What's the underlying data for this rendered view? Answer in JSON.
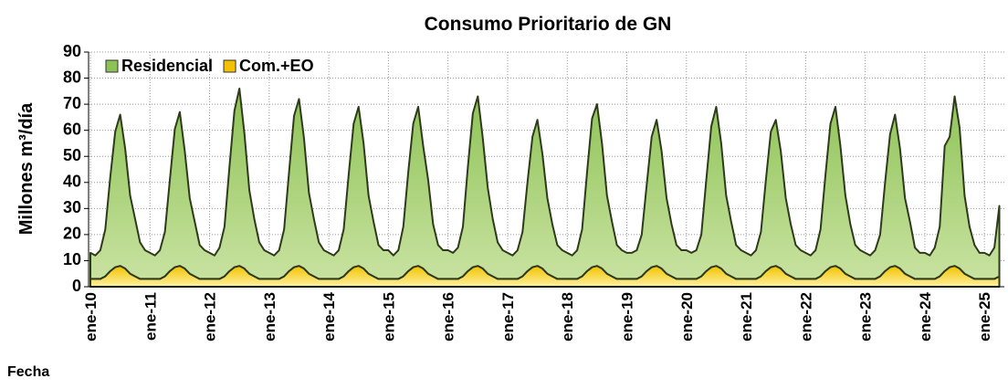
{
  "chart_data": {
    "type": "stacked-area",
    "title": "Consumo Prioritario de GN",
    "y_label": "Millones m³/día",
    "x_label": "Fecha",
    "categories": [
      "ene-10",
      null,
      null,
      null,
      null,
      null,
      null,
      null,
      null,
      null,
      null,
      null,
      "ene-11",
      null,
      null,
      null,
      null,
      null,
      null,
      null,
      null,
      null,
      null,
      null,
      "ene-12",
      null,
      null,
      null,
      null,
      null,
      null,
      null,
      null,
      null,
      null,
      null,
      "ene-13",
      null,
      null,
      null,
      null,
      null,
      null,
      null,
      null,
      null,
      null,
      null,
      "ene-14",
      null,
      null,
      null,
      null,
      null,
      null,
      null,
      null,
      null,
      null,
      null,
      "ene-15",
      null,
      null,
      null,
      null,
      null,
      null,
      null,
      null,
      null,
      null,
      null,
      "ene-16",
      null,
      null,
      null,
      null,
      null,
      null,
      null,
      null,
      null,
      null,
      null,
      "ene-17",
      null,
      null,
      null,
      null,
      null,
      null,
      null,
      null,
      null,
      null,
      null,
      "ene-18",
      null,
      null,
      null,
      null,
      null,
      null,
      null,
      null,
      null,
      null,
      null,
      "ene-19",
      null,
      null,
      null,
      null,
      null,
      null,
      null,
      null,
      null,
      null,
      null,
      "ene-20",
      null,
      null,
      null,
      null,
      null,
      null,
      null,
      null,
      null,
      null,
      null,
      "ene-21",
      null,
      null,
      null,
      null,
      null,
      null,
      null,
      null,
      null,
      null,
      null,
      "ene-22",
      null,
      null,
      null,
      null,
      null,
      null,
      null,
      null,
      null,
      null,
      null,
      "ene-23",
      null,
      null,
      null,
      null,
      null,
      null,
      null,
      null,
      null,
      null,
      null,
      "ene-24",
      null,
      null,
      null,
      null,
      null,
      null,
      null,
      null,
      null,
      null,
      null,
      "ene-25",
      null,
      null,
      null
    ],
    "series": [
      {
        "name": "Residencial",
        "color": "#8dc255",
        "values": [
          10,
          9,
          11,
          18,
          36,
          52,
          58,
          46,
          30,
          22,
          14,
          11,
          10,
          9,
          11,
          17,
          35,
          53,
          59,
          45,
          29,
          21,
          13,
          11,
          10,
          9,
          12,
          19,
          40,
          60,
          68,
          52,
          32,
          22,
          14,
          11,
          10,
          9,
          11,
          18,
          38,
          58,
          64,
          50,
          31,
          22,
          14,
          11,
          10,
          9,
          11,
          18,
          37,
          55,
          61,
          48,
          30,
          21,
          13,
          11,
          11,
          9,
          11,
          19,
          38,
          55,
          61,
          47,
          36,
          20,
          13,
          11,
          11,
          10,
          12,
          19,
          40,
          59,
          65,
          50,
          33,
          22,
          14,
          11,
          10,
          9,
          11,
          17,
          34,
          50,
          56,
          44,
          29,
          20,
          13,
          11,
          10,
          9,
          11,
          18,
          38,
          57,
          62,
          48,
          30,
          21,
          13,
          11,
          10,
          10,
          11,
          16,
          33,
          50,
          56,
          45,
          29,
          20,
          13,
          11,
          11,
          10,
          11,
          16,
          35,
          54,
          61,
          48,
          30,
          21,
          13,
          11,
          10,
          9,
          11,
          17,
          35,
          52,
          56,
          45,
          29,
          20,
          13,
          11,
          10,
          9,
          11,
          18,
          37,
          55,
          61,
          47,
          30,
          20,
          13,
          11,
          10,
          9,
          11,
          16,
          34,
          51,
          58,
          46,
          29,
          21,
          12,
          10,
          10,
          9,
          12,
          19,
          48,
          50,
          65,
          54,
          30,
          19,
          13,
          10,
          10,
          9,
          12,
          27
        ]
      },
      {
        "name": "Com.+EO",
        "color": "#f2c200",
        "values": [
          3,
          3,
          3,
          4,
          6,
          7.5,
          8,
          7,
          5,
          4,
          3,
          3,
          3,
          3,
          3,
          4,
          6,
          7.5,
          8,
          7,
          5,
          4,
          3,
          3,
          3,
          3,
          3,
          4,
          6,
          7.5,
          8,
          7,
          5,
          4,
          3,
          3,
          3,
          3,
          3,
          4,
          6,
          7.5,
          8,
          7,
          5,
          4,
          3,
          3,
          3,
          3,
          3,
          4,
          6,
          7.5,
          8,
          7,
          5,
          4,
          3,
          3,
          3,
          3,
          3,
          4,
          6,
          7.5,
          8,
          7,
          5,
          4,
          3,
          3,
          3,
          3,
          3,
          4,
          6,
          7.5,
          8,
          7,
          5,
          4,
          3,
          3,
          3,
          3,
          3,
          4,
          6,
          7.5,
          8,
          7,
          5,
          4,
          3,
          3,
          3,
          3,
          3,
          4,
          6,
          7.5,
          8,
          7,
          5,
          4,
          3,
          3,
          3,
          3,
          3,
          4,
          6,
          7.5,
          8,
          7,
          5,
          4,
          3,
          3,
          3,
          3,
          3,
          4,
          6,
          7.5,
          8,
          7,
          5,
          4,
          3,
          3,
          3,
          3,
          3,
          4,
          6,
          7.5,
          8,
          7,
          5,
          4,
          3,
          3,
          3,
          3,
          3,
          4,
          6,
          7.5,
          8,
          7,
          5,
          4,
          3,
          3,
          3,
          3,
          3,
          4,
          6,
          7.5,
          8,
          7,
          5,
          4,
          3,
          3,
          3,
          3,
          3,
          4,
          6,
          7.5,
          8,
          7,
          5,
          4,
          3,
          3,
          3,
          3,
          3,
          4
        ]
      }
    ],
    "ylim": [
      0,
      90
    ],
    "yticks": [
      0,
      10,
      20,
      30,
      40,
      50,
      60,
      70,
      80,
      90
    ],
    "grid": true,
    "legend": "top-left"
  }
}
